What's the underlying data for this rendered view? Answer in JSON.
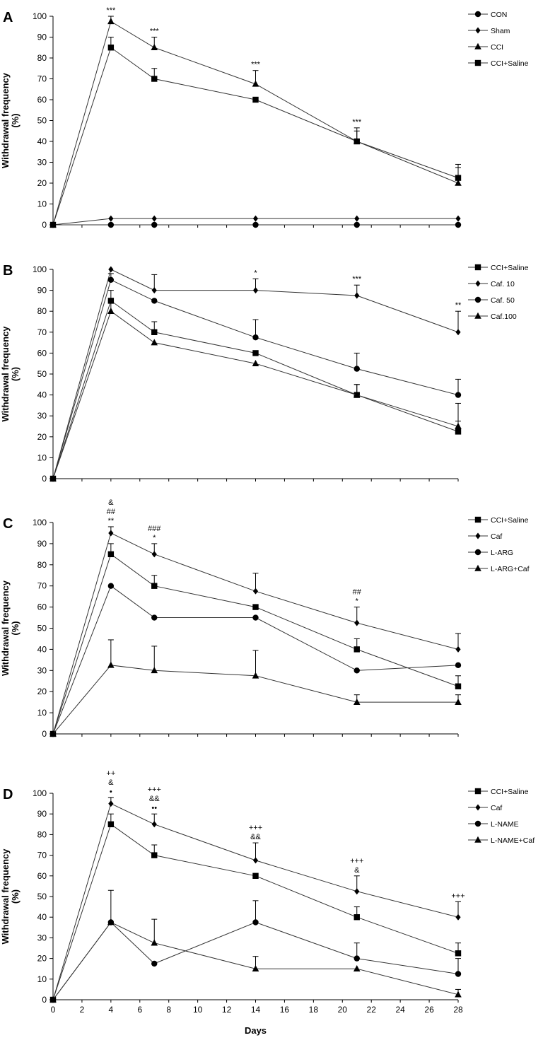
{
  "colors": {
    "line": "#333333",
    "marker": "#000000",
    "background": "#ffffff"
  },
  "shared": {
    "xlabel": "Days",
    "ylabel_line1": "Withdrawal frequency",
    "ylabel_line2": "(%)",
    "xlim": [
      0,
      28
    ],
    "xticks": [
      0,
      2,
      4,
      6,
      8,
      10,
      12,
      14,
      16,
      18,
      20,
      22,
      24,
      26,
      28
    ],
    "ylim": [
      0,
      100
    ],
    "yticks": [
      0,
      10,
      20,
      30,
      40,
      50,
      60,
      70,
      80,
      90,
      100
    ]
  },
  "chart_data": [
    {
      "type": "line",
      "panel": "A",
      "x": [
        0,
        4,
        7,
        14,
        21,
        28
      ],
      "series": [
        {
          "name": "CON",
          "marker": "circle",
          "values": [
            0,
            0,
            0,
            0,
            0,
            0
          ],
          "errors": [
            0,
            0,
            0,
            0,
            0,
            0
          ]
        },
        {
          "name": "Sham",
          "marker": "diamond",
          "values": [
            0,
            3,
            3,
            3,
            3,
            3
          ],
          "errors": [
            0,
            0,
            0,
            0,
            0,
            0
          ]
        },
        {
          "name": "CCI",
          "marker": "triangle",
          "values": [
            0,
            97.5,
            85,
            67.5,
            40,
            20
          ],
          "errors": [
            0,
            2.5,
            5,
            6.5,
            6.5,
            9
          ]
        },
        {
          "name": "CCI+Saline",
          "marker": "square",
          "values": [
            0,
            85,
            70,
            60,
            40,
            22.5
          ],
          "errors": [
            0,
            5,
            5,
            0,
            5,
            5
          ]
        }
      ],
      "annotations": [
        {
          "x": 4,
          "lines": [
            "***"
          ]
        },
        {
          "x": 7,
          "lines": [
            "***"
          ]
        },
        {
          "x": 14,
          "lines": [
            "***"
          ]
        },
        {
          "x": 21,
          "lines": [
            "***"
          ]
        }
      ]
    },
    {
      "type": "line",
      "panel": "B",
      "x": [
        0,
        4,
        7,
        14,
        21,
        28
      ],
      "series": [
        {
          "name": "CCI+Saline",
          "marker": "square",
          "values": [
            0,
            85,
            70,
            60,
            40,
            22.5
          ],
          "errors": [
            0,
            5,
            5,
            0,
            5,
            5
          ]
        },
        {
          "name": "Caf. 10",
          "marker": "diamond",
          "values": [
            0,
            100,
            90,
            90,
            87.5,
            70
          ],
          "errors": [
            0,
            0,
            7.5,
            5.5,
            5,
            10
          ]
        },
        {
          "name": "Caf. 50",
          "marker": "circle",
          "values": [
            0,
            95,
            85,
            67.5,
            52.5,
            40
          ],
          "errors": [
            0,
            3,
            0,
            8.5,
            7.5,
            7.5
          ]
        },
        {
          "name": "Caf.100",
          "marker": "triangle",
          "values": [
            0,
            80,
            65,
            55,
            40,
            25
          ],
          "errors": [
            0,
            5,
            0,
            0,
            5,
            11
          ]
        }
      ],
      "annotations": [
        {
          "x": 14,
          "lines": [
            "*"
          ]
        },
        {
          "x": 21,
          "lines": [
            "***"
          ]
        },
        {
          "x": 28,
          "lines": [
            "**"
          ]
        }
      ]
    },
    {
      "type": "line",
      "panel": "C",
      "x": [
        0,
        4,
        7,
        14,
        21,
        28
      ],
      "series": [
        {
          "name": "CCI+Saline",
          "marker": "square",
          "values": [
            0,
            85,
            70,
            60,
            40,
            22.5
          ],
          "errors": [
            0,
            5,
            5,
            0,
            5,
            5
          ]
        },
        {
          "name": "Caf",
          "marker": "diamond",
          "values": [
            0,
            95,
            85,
            67.5,
            52.5,
            40
          ],
          "errors": [
            0,
            3,
            5,
            8.5,
            7.5,
            7.5
          ]
        },
        {
          "name": "L-ARG",
          "marker": "circle",
          "values": [
            0,
            70,
            55,
            55,
            30,
            32.5
          ],
          "errors": [
            0,
            0,
            0,
            0,
            0,
            0
          ]
        },
        {
          "name": "L-ARG+Caf",
          "marker": "triangle",
          "values": [
            0,
            32.5,
            30,
            27.5,
            15,
            15
          ],
          "errors": [
            0,
            12,
            11.5,
            12,
            3.5,
            3.5
          ]
        }
      ],
      "annotations": [
        {
          "x": 4,
          "lines": [
            "&",
            "##",
            "**"
          ]
        },
        {
          "x": 7,
          "lines": [
            "###",
            "*"
          ]
        },
        {
          "x": 21,
          "lines": [
            "##",
            "*"
          ]
        }
      ]
    },
    {
      "type": "line",
      "panel": "D",
      "x": [
        0,
        4,
        7,
        14,
        21,
        28
      ],
      "series": [
        {
          "name": "CCI+Saline",
          "marker": "square",
          "values": [
            0,
            85,
            70,
            60,
            40,
            22.5
          ],
          "errors": [
            0,
            5,
            5,
            0,
            5,
            5
          ]
        },
        {
          "name": "Caf",
          "marker": "diamond",
          "values": [
            0,
            95,
            85,
            67.5,
            52.5,
            40
          ],
          "errors": [
            0,
            3,
            5,
            8.5,
            7.5,
            7.5
          ]
        },
        {
          "name": "L-NAME",
          "marker": "circle",
          "values": [
            0,
            37.5,
            17.5,
            37.5,
            20,
            12.5
          ],
          "errors": [
            0,
            15.5,
            0,
            10.5,
            7.5,
            7.5
          ]
        },
        {
          "name": "L-NAME+Caf",
          "marker": "triangle",
          "values": [
            0,
            37.5,
            27.5,
            15,
            15,
            2.5
          ],
          "errors": [
            0,
            0,
            11.5,
            6,
            0,
            2.5
          ]
        }
      ],
      "annotations": [
        {
          "x": 4,
          "lines": [
            "++",
            "&",
            "•"
          ]
        },
        {
          "x": 7,
          "lines": [
            "+++",
            "&&",
            "••"
          ]
        },
        {
          "x": 14,
          "lines": [
            "+++",
            "&&"
          ]
        },
        {
          "x": 21,
          "lines": [
            "+++",
            "&"
          ]
        },
        {
          "x": 28,
          "lines": [
            "+++"
          ]
        }
      ]
    }
  ]
}
